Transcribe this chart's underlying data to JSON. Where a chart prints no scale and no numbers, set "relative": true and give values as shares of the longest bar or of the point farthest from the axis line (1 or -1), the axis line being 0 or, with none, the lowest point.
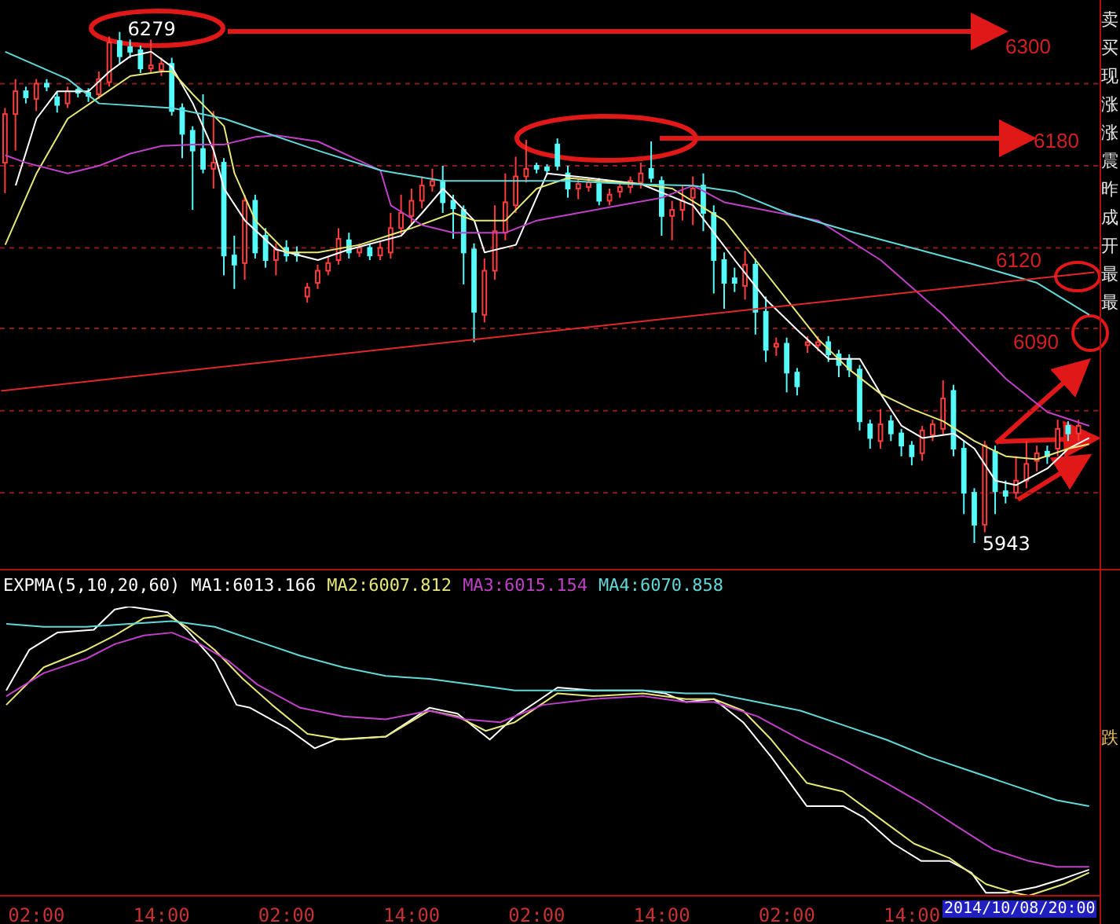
{
  "chart_data": [
    {
      "type": "candlestick",
      "x": [
        "2014-10-04T23:00",
        "2014-10-05T00:00",
        "2014-10-05T01:00",
        "2014-10-05T02:00",
        "2014-10-05T03:00",
        "2014-10-05T04:00",
        "2014-10-05T05:00",
        "2014-10-05T06:00",
        "2014-10-05T07:00",
        "2014-10-05T08:00",
        "2014-10-05T09:00",
        "2014-10-05T10:00",
        "2014-10-05T11:00",
        "2014-10-05T12:00",
        "2014-10-05T13:00",
        "2014-10-05T14:00",
        "2014-10-05T15:00",
        "2014-10-05T16:00",
        "2014-10-05T17:00",
        "2014-10-05T18:00",
        "2014-10-05T19:00",
        "2014-10-05T20:00",
        "2014-10-05T21:00",
        "2014-10-05T22:00",
        "2014-10-05T23:00",
        "2014-10-06T00:00",
        "2014-10-06T01:00",
        "2014-10-06T02:00",
        "2014-10-06T03:00",
        "2014-10-06T04:00",
        "2014-10-06T05:00",
        "2014-10-06T06:00",
        "2014-10-06T07:00",
        "2014-10-06T08:00",
        "2014-10-06T09:00",
        "2014-10-06T10:00",
        "2014-10-06T11:00",
        "2014-10-06T12:00",
        "2014-10-06T13:00",
        "2014-10-06T14:00",
        "2014-10-06T15:00",
        "2014-10-06T16:00",
        "2014-10-06T17:00",
        "2014-10-06T18:00",
        "2014-10-06T19:00",
        "2014-10-06T20:00",
        "2014-10-06T21:00",
        "2014-10-06T22:00",
        "2014-10-06T23:00",
        "2014-10-07T00:00",
        "2014-10-07T01:00",
        "2014-10-07T02:00",
        "2014-10-07T03:00",
        "2014-10-07T04:00",
        "2014-10-07T05:00",
        "2014-10-07T06:00",
        "2014-10-07T07:00",
        "2014-10-07T08:00",
        "2014-10-07T09:00",
        "2014-10-07T10:00",
        "2014-10-07T11:00",
        "2014-10-07T12:00",
        "2014-10-07T13:00",
        "2014-10-07T14:00",
        "2014-10-07T15:00",
        "2014-10-07T16:00",
        "2014-10-07T17:00",
        "2014-10-07T18:00",
        "2014-10-07T19:00",
        "2014-10-07T20:00",
        "2014-10-07T21:00",
        "2014-10-07T22:00",
        "2014-10-07T23:00",
        "2014-10-08T00:00",
        "2014-10-08T01:00",
        "2014-10-08T02:00",
        "2014-10-08T03:00",
        "2014-10-08T04:00",
        "2014-10-08T05:00",
        "2014-10-08T06:00",
        "2014-10-08T07:00",
        "2014-10-08T08:00",
        "2014-10-08T09:00",
        "2014-10-08T10:00",
        "2014-10-08T11:00",
        "2014-10-08T12:00",
        "2014-10-08T13:00",
        "2014-10-08T14:00",
        "2014-10-08T15:00",
        "2014-10-08T16:00",
        "2014-10-08T17:00",
        "2014-10-08T18:00",
        "2014-10-08T19:00",
        "2014-10-08T20:00",
        "2014-10-08T21:00",
        "2014-10-08T22:00",
        "2014-10-08T23:00",
        "2014-10-09T00:00",
        "2014-10-09T01:00",
        "2014-10-09T02:00",
        "2014-10-09T03:00",
        "2014-10-09T04:00",
        "2014-10-09T05:00",
        "2014-10-09T06:00"
      ],
      "ohlc": [
        [
          6193,
          6229,
          6173,
          6225
        ],
        [
          6225,
          6248,
          6201,
          6240
        ],
        [
          6240,
          6243,
          6232,
          6236
        ],
        [
          6235,
          6248,
          6227,
          6245
        ],
        [
          6245,
          6248,
          6240,
          6243
        ],
        [
          6236,
          6240,
          6226,
          6231
        ],
        [
          6232,
          6243,
          6229,
          6240
        ],
        [
          6241,
          6243,
          6236,
          6239
        ],
        [
          6239,
          6242,
          6233,
          6237
        ],
        [
          6238,
          6253,
          6235,
          6248
        ],
        [
          6246,
          6276,
          6243,
          6272
        ],
        [
          6273,
          6279,
          6258,
          6263
        ],
        [
          6269,
          6274,
          6262,
          6266
        ],
        [
          6267,
          6270,
          6252,
          6255
        ],
        [
          6255,
          6274,
          6252,
          6257
        ],
        [
          6254,
          6262,
          6250,
          6258
        ],
        [
          6258,
          6262,
          6224,
          6227
        ],
        [
          6229,
          6232,
          6196,
          6212
        ],
        [
          6214,
          6217,
          6162,
          6201
        ],
        [
          6202,
          6238,
          6186,
          6189
        ],
        [
          6189,
          6227,
          6176,
          6193
        ],
        [
          6193,
          6196,
          6119,
          6132
        ],
        [
          6132,
          6145,
          6110,
          6126
        ],
        [
          6127,
          6172,
          6116,
          6168
        ],
        [
          6168,
          6172,
          6130,
          6134
        ],
        [
          6145,
          6150,
          6124,
          6129
        ],
        [
          6129,
          6140,
          6119,
          6136
        ],
        [
          6137,
          6142,
          6128,
          6132
        ],
        [
          6134,
          6138,
          6128,
          6132
        ],
        [
          6105,
          6114,
          6101,
          6111
        ],
        [
          6114,
          6126,
          6110,
          6122
        ],
        [
          6122,
          6131,
          6119,
          6127
        ],
        [
          6129,
          6150,
          6126,
          6143
        ],
        [
          6142,
          6147,
          6130,
          6134
        ],
        [
          6134,
          6140,
          6131,
          6137
        ],
        [
          6137,
          6140,
          6129,
          6132
        ],
        [
          6132,
          6141,
          6129,
          6137
        ],
        [
          6134,
          6160,
          6130,
          6150
        ],
        [
          6150,
          6172,
          6146,
          6160
        ],
        [
          6158,
          6176,
          6152,
          6168
        ],
        [
          6168,
          6184,
          6163,
          6178
        ],
        [
          6178,
          6189,
          6174,
          6181
        ],
        [
          6181,
          6191,
          6160,
          6167
        ],
        [
          6168,
          6172,
          6143,
          6163
        ],
        [
          6162,
          6165,
          6113,
          6134
        ],
        [
          6136,
          6140,
          6075,
          6095
        ],
        [
          6093,
          6130,
          6088,
          6122
        ],
        [
          6122,
          6165,
          6116,
          6148
        ],
        [
          6147,
          6186,
          6142,
          6167
        ],
        [
          6165,
          6197,
          6160,
          6184
        ],
        [
          6184,
          6208,
          6180,
          6189
        ],
        [
          6191,
          6193,
          6186,
          6189
        ],
        [
          6190,
          6192,
          6185,
          6188
        ],
        [
          6205,
          6209,
          6188,
          6191
        ],
        [
          6186,
          6191,
          6170,
          6176
        ],
        [
          6176,
          6182,
          6169,
          6179
        ],
        [
          6177,
          6183,
          6174,
          6180
        ],
        [
          6179,
          6183,
          6165,
          6168
        ],
        [
          6168,
          6176,
          6165,
          6172
        ],
        [
          6174,
          6181,
          6170,
          6177
        ],
        [
          6177,
          6184,
          6173,
          6181
        ],
        [
          6180,
          6193,
          6176,
          6186
        ],
        [
          6189,
          6207,
          6180,
          6183
        ],
        [
          6181,
          6184,
          6145,
          6158
        ],
        [
          6158,
          6168,
          6142,
          6162
        ],
        [
          6162,
          6178,
          6155,
          6168
        ],
        [
          6170,
          6184,
          6152,
          6176
        ],
        [
          6178,
          6186,
          6148,
          6160
        ],
        [
          6160,
          6165,
          6107,
          6129
        ],
        [
          6129,
          6134,
          6097,
          6114
        ],
        [
          6117,
          6124,
          6108,
          6114
        ],
        [
          6112,
          6135,
          6103,
          6126
        ],
        [
          6126,
          6130,
          6080,
          6095
        ],
        [
          6095,
          6105,
          6062,
          6070
        ],
        [
          6072,
          6078,
          6066,
          6074
        ],
        [
          6074,
          6078,
          6042,
          6055
        ],
        [
          6055,
          6058,
          6040,
          6046
        ],
        [
          6073,
          6079,
          6068,
          6075
        ],
        [
          6073,
          6079,
          6069,
          6075
        ],
        [
          6075,
          6079,
          6062,
          6067
        ],
        [
          6067,
          6070,
          6052,
          6060
        ],
        [
          6064,
          6067,
          6052,
          6057
        ],
        [
          6057,
          6060,
          6017,
          6023
        ],
        [
          6021,
          6024,
          6005,
          6012
        ],
        [
          6010,
          6031,
          6005,
          6021
        ],
        [
          6023,
          6027,
          6010,
          6015
        ],
        [
          6015,
          6018,
          6000,
          6007
        ],
        [
          6007,
          6010,
          5994,
          6000
        ],
        [
          6002,
          6020,
          5997,
          6017
        ],
        [
          6014,
          6024,
          6010,
          6021
        ],
        [
          6018,
          6050,
          6014,
          6038
        ],
        [
          6043,
          6047,
          6000,
          6005
        ],
        [
          6005,
          6010,
          5962,
          5976
        ],
        [
          5976,
          5979,
          5943,
          5955
        ],
        [
          5955,
          6010,
          5950,
          6007
        ],
        [
          6003,
          6007,
          5962,
          5977
        ],
        [
          5977,
          5984,
          5969,
          5974
        ],
        [
          5976,
          6000,
          5972,
          5984
        ],
        [
          5984,
          6010,
          5979,
          5995
        ],
        [
          5997,
          6007,
          5990,
          6002
        ],
        [
          6003,
          6007,
          5995,
          6000
        ],
        [
          6005,
          6024,
          6000,
          6018
        ],
        [
          6020,
          6023,
          6010,
          6015
        ],
        [
          6015,
          6024,
          6010,
          6020
        ]
      ],
      "colors": [
        "#ff3c3c",
        "#ff3c3c",
        "#54fcfc",
        "#ff3c3c",
        "#54fcfc",
        "#54fcfc",
        "#ff3c3c",
        "#54fcfc",
        "#54fcfc",
        "#ff3c3c",
        "#ff3c3c",
        "#54fcfc",
        "#54fcfc",
        "#54fcfc",
        "#ff3c3c",
        "#ff3c3c",
        "#54fcfc",
        "#54fcfc",
        "#54fcfc",
        "#54fcfc",
        "#ff3c3c",
        "#54fcfc",
        "#54fcfc",
        "#ff3c3c",
        "#54fcfc",
        "#54fcfc",
        "#ff3c3c",
        "#54fcfc",
        "#54fcfc",
        "#ff3c3c",
        "#ff3c3c",
        "#ff3c3c",
        "#ff3c3c",
        "#54fcfc",
        "#ff3c3c",
        "#54fcfc",
        "#ff3c3c",
        "#ff3c3c",
        "#ff3c3c",
        "#ff3c3c",
        "#ff3c3c",
        "#ff3c3c",
        "#54fcfc",
        "#54fcfc",
        "#54fcfc",
        "#54fcfc",
        "#ff3c3c",
        "#ff3c3c",
        "#ff3c3c",
        "#ff3c3c",
        "#ff3c3c",
        "#54fcfc",
        "#54fcfc",
        "#54fcfc",
        "#54fcfc",
        "#ff3c3c",
        "#ff3c3c",
        "#54fcfc",
        "#ff3c3c",
        "#ff3c3c",
        "#ff3c3c",
        "#ff3c3c",
        "#54fcfc",
        "#54fcfc",
        "#ff3c3c",
        "#ff3c3c",
        "#ff3c3c",
        "#54fcfc",
        "#54fcfc",
        "#54fcfc",
        "#54fcfc",
        "#ff3c3c",
        "#54fcfc",
        "#54fcfc",
        "#ff3c3c",
        "#54fcfc",
        "#54fcfc",
        "#ff3c3c",
        "#ff3c3c",
        "#54fcfc",
        "#54fcfc",
        "#54fcfc",
        "#54fcfc",
        "#54fcfc",
        "#ff3c3c",
        "#54fcfc",
        "#54fcfc",
        "#54fcfc",
        "#ff3c3c",
        "#ff3c3c",
        "#ff3c3c",
        "#54fcfc",
        "#54fcfc",
        "#54fcfc",
        "#ff3c3c",
        "#54fcfc",
        "#54fcfc",
        "#ff3c3c",
        "#ff3c3c",
        "#ff3c3c",
        "#54fcfc",
        "#ff3c3c",
        "#54fcfc",
        "#ff3c3c"
      ],
      "series": [
        {
          "type": "line",
          "color": "#ffffff",
          "x": [
            "2014-10-05T00:00",
            "2014-10-05T02:00",
            "2014-10-05T04:00",
            "2014-10-05T07:00",
            "2014-10-05T09:00",
            "2014-10-05T11:00",
            "2014-10-05T13:00",
            "2014-10-05T15:00",
            "2014-10-05T17:00",
            "2014-10-05T19:00",
            "2014-10-05T20:00",
            "2014-10-05T22:00",
            "2014-10-06T01:00",
            "2014-10-06T05:00",
            "2014-10-06T08:00",
            "2014-10-06T13:00",
            "2014-10-06T15:00",
            "2014-10-06T17:00",
            "2014-10-06T20:00",
            "2014-10-06T21:00",
            "2014-10-07T00:00",
            "2014-10-07T03:00",
            "2014-10-07T07:00",
            "2014-10-07T12:00",
            "2014-10-07T17:00",
            "2014-10-07T21:00",
            "2014-10-08T00:00",
            "2014-10-08T03:00",
            "2014-10-08T06:00",
            "2014-10-08T09:00",
            "2014-10-08T11:00",
            "2014-10-08T13:00",
            "2014-10-08T15:00",
            "2014-10-08T18:00",
            "2014-10-08T20:00",
            "2014-10-08T22:00",
            "2014-10-09T00:00",
            "2014-10-09T03:00",
            "2014-10-09T05:00",
            "2014-10-09T07:00"
          ],
          "values": [
            6178,
            6222,
            6240,
            6240,
            6253,
            6263,
            6266,
            6256,
            6232,
            6201,
            6176,
            6155,
            6136,
            6129,
            6136,
            6145,
            6160,
            6176,
            6155,
            6134,
            6139,
            6186,
            6183,
            6179,
            6165,
            6129,
            6103,
            6083,
            6064,
            6064,
            6041,
            6020,
            6012,
            6015,
            6005,
            5984,
            5981,
            5992,
            6005,
            6012
          ]
        },
        {
          "type": "line",
          "color": "#e8e878",
          "x": [
            "2014-10-04T23:00",
            "2014-10-05T02:00",
            "2014-10-05T05:00",
            "2014-10-05T08:00",
            "2014-10-05T11:00",
            "2014-10-05T14:00",
            "2014-10-05T15:00",
            "2014-10-05T17:00",
            "2014-10-05T20:00",
            "2014-10-05T21:00",
            "2014-10-05T23:00",
            "2014-10-06T02:00",
            "2014-10-06T05:00",
            "2014-10-06T09:00",
            "2014-10-06T14:00",
            "2014-10-06T18:00",
            "2014-10-06T20:00",
            "2014-10-06T23:00",
            "2014-10-07T02:00",
            "2014-10-07T05:00",
            "2014-10-07T08:00",
            "2014-10-07T12:00",
            "2014-10-07T15:00",
            "2014-10-07T20:00",
            "2014-10-07T23:00",
            "2014-10-08T02:00",
            "2014-10-08T05:00",
            "2014-10-08T08:00",
            "2014-10-08T11:00",
            "2014-10-08T14:00",
            "2014-10-08T17:00",
            "2014-10-08T20:00",
            "2014-10-08T23:00",
            "2014-10-09T02:00",
            "2014-10-09T05:00",
            "2014-10-09T07:00"
          ],
          "values": [
            6139,
            6186,
            6222,
            6236,
            6250,
            6253,
            6253,
            6238,
            6217,
            6186,
            6155,
            6134,
            6134,
            6139,
            6150,
            6160,
            6155,
            6155,
            6176,
            6183,
            6181,
            6179,
            6176,
            6155,
            6129,
            6103,
            6077,
            6057,
            6041,
            6031,
            6023,
            6010,
            6000,
            5998,
            6005,
            6008
          ]
        },
        {
          "type": "line",
          "color": "#c040c8",
          "x": [
            "2014-10-04T23:00",
            "2014-10-05T01:00",
            "2014-10-05T05:00",
            "2014-10-05T08:00",
            "2014-10-05T11:00",
            "2014-10-05T14:00",
            "2014-10-05T17:00",
            "2014-10-05T20:00",
            "2014-10-05T23:00",
            "2014-10-06T01:00",
            "2014-10-06T05:00",
            "2014-10-06T11:00",
            "2014-10-06T12:00",
            "2014-10-06T15:00",
            "2014-10-06T18:00",
            "2014-10-06T23:00",
            "2014-10-07T02:00",
            "2014-10-07T06:00",
            "2014-10-07T10:00",
            "2014-10-07T14:00",
            "2014-10-07T17:00",
            "2014-10-07T20:00",
            "2014-10-08T05:00",
            "2014-10-08T11:00",
            "2014-10-08T17:00",
            "2014-10-08T23:00",
            "2014-10-09T03:00",
            "2014-10-09T07:00"
          ],
          "values": [
            6198,
            6193,
            6186,
            6191,
            6199,
            6204,
            6205,
            6205,
            6210,
            6211,
            6207,
            6188,
            6165,
            6152,
            6147,
            6147,
            6155,
            6160,
            6165,
            6170,
            6178,
            6167,
            6155,
            6129,
            6093,
            6051,
            6029,
            6020
          ]
        },
        {
          "type": "line",
          "color": "#60d8d8",
          "x": [
            "2014-10-04T23:00",
            "2014-10-05T05:00",
            "2014-10-05T08:00",
            "2014-10-05T15:00",
            "2014-10-05T20:00",
            "2014-10-05T23:00",
            "2014-10-06T05:00",
            "2014-10-06T11:00",
            "2014-10-06T17:00",
            "2014-10-06T23:00",
            "2014-10-07T05:00",
            "2014-10-07T11:00",
            "2014-10-07T17:00",
            "2014-10-07T21:00",
            "2014-10-08T02:00",
            "2014-10-08T08:00",
            "2014-10-08T14:00",
            "2014-10-08T20:00",
            "2014-10-09T02:00",
            "2014-10-09T07:00"
          ],
          "values": [
            6266,
            6248,
            6232,
            6229,
            6222,
            6215,
            6201,
            6188,
            6181,
            6181,
            6181,
            6179,
            6178,
            6174,
            6160,
            6148,
            6137,
            6126,
            6114,
            6093
          ]
        },
        {
          "type": "line",
          "color": "#e02828",
          "x": [
            "2014-10-04T22:36",
            "2014-10-09T07:30"
          ],
          "values": [
            6043,
            6121
          ]
        }
      ],
      "xlim": [
        "2014-10-04T22:30",
        "2014-10-09T08:00"
      ],
      "ylim": [
        5927,
        6300
      ],
      "yticks": [
        {
          "value": 6245,
          "label": null
        },
        {
          "value": 6191,
          "label": null
        },
        {
          "value": 6137,
          "label": null
        },
        {
          "value": 6084,
          "label": null
        },
        {
          "value": 6030,
          "label": null
        },
        {
          "value": 5976,
          "label": null
        }
      ],
      "grid": "y",
      "tick_labels": false,
      "marker": "none",
      "line_style": "solid",
      "annotations": [
        {
          "text": "6279",
          "x": "2014-10-05T10:00",
          "y": 6279
        },
        {
          "text": "5943",
          "x": "2014-10-08T20:00",
          "y": 5943
        },
        "6300",
        "6180",
        "6120",
        "6090",
        "卖",
        "买",
        "现",
        "涨",
        "涨",
        "震",
        "昨",
        "成",
        "开",
        "最",
        "最"
      ]
    },
    {
      "type": "line",
      "relative": true,
      "title": "EXPMA(5,10,20,60)",
      "legend": "top left",
      "marker": "none",
      "line_style": "solid",
      "tick_labels": "x",
      "xlim": [
        "2014-10-04T22:30",
        "2014-10-09T08:00"
      ],
      "xticks": [
        {
          "value": "2014-10-05T02:00",
          "label": "02:00"
        },
        {
          "value": "2014-10-05T14:00",
          "label": "14:00"
        },
        {
          "value": "2014-10-06T02:00",
          "label": "02:00"
        },
        {
          "value": "2014-10-06T14:00",
          "label": "14:00"
        },
        {
          "value": "2014-10-07T02:00",
          "label": "02:00"
        },
        {
          "value": "2014-10-07T14:00",
          "label": "14:00"
        },
        {
          "value": "2014-10-08T02:00",
          "label": "02:00"
        },
        {
          "value": "2014-10-08T14:00",
          "label": "14:00"
        }
      ],
      "series": [
        {
          "name": "MA1:6013.166",
          "color": "#ffffff",
          "x": [
            "2014-10-04T23:06",
            "2014-10-05T01:18",
            "2014-10-05T04:00",
            "2014-10-05T07:30",
            "2014-10-05T09:30",
            "2014-10-05T10:54",
            "2014-10-05T14:36",
            "2014-10-05T16:24",
            "2014-10-05T19:06",
            "2014-10-05T21:12",
            "2014-10-05T22:30",
            "2014-10-06T02:00",
            "2014-10-06T04:42",
            "2014-10-06T06:42",
            "2014-10-06T11:30",
            "2014-10-06T15:42",
            "2014-10-06T18:24",
            "2014-10-06T20:06",
            "2014-10-06T21:30",
            "2014-10-06T23:54",
            "2014-10-07T04:00",
            "2014-10-07T07:24",
            "2014-10-07T12:12",
            "2014-10-07T14:18",
            "2014-10-07T16:18",
            "2014-10-07T19:00",
            "2014-10-07T21:48",
            "2014-10-08T00:30",
            "2014-10-08T03:54",
            "2014-10-08T07:24",
            "2014-10-08T09:24",
            "2014-10-08T12:12",
            "2014-10-08T14:54",
            "2014-10-08T17:36",
            "2014-10-08T19:42",
            "2014-10-08T21:06",
            "2014-10-08T23:06",
            "2014-10-09T01:54",
            "2014-10-09T04:36",
            "2014-10-09T07:00"
          ],
          "values": [
            0.71,
            0.85,
            0.91,
            0.92,
            0.99,
            1.0,
            0.98,
            0.92,
            0.81,
            0.66,
            0.65,
            0.58,
            0.51,
            0.54,
            0.55,
            0.65,
            0.63,
            0.58,
            0.54,
            0.62,
            0.72,
            0.71,
            0.71,
            0.7,
            0.67,
            0.68,
            0.6,
            0.48,
            0.31,
            0.31,
            0.27,
            0.18,
            0.12,
            0.12,
            0.08,
            0.01,
            0.01,
            0.03,
            0.06,
            0.09
          ]
        },
        {
          "name": "MA2:6007.812",
          "color": "#e8e878",
          "x": [
            "2014-10-04T23:06",
            "2014-10-05T02:42",
            "2014-10-05T06:48",
            "2014-10-05T09:30",
            "2014-10-05T12:18",
            "2014-10-05T14:36",
            "2014-10-05T16:24",
            "2014-10-05T19:06",
            "2014-10-05T21:48",
            "2014-10-06T00:36",
            "2014-10-06T04:00",
            "2014-10-06T07:24",
            "2014-10-06T11:30",
            "2014-10-06T15:42",
            "2014-10-06T18:24",
            "2014-10-06T21:06",
            "2014-10-06T23:54",
            "2014-10-07T04:00",
            "2014-10-07T07:24",
            "2014-10-07T12:12",
            "2014-10-07T16:18",
            "2014-10-07T19:00",
            "2014-10-07T21:48",
            "2014-10-08T00:30",
            "2014-10-08T03:54",
            "2014-10-08T07:24",
            "2014-10-08T10:48",
            "2014-10-08T14:12",
            "2014-10-08T17:36",
            "2014-10-08T21:06",
            "2014-10-08T23:48",
            "2014-10-09T01:12",
            "2014-10-09T04:36",
            "2014-10-09T07:00"
          ],
          "values": [
            0.66,
            0.79,
            0.85,
            0.9,
            0.96,
            0.97,
            0.93,
            0.85,
            0.75,
            0.66,
            0.56,
            0.54,
            0.55,
            0.64,
            0.62,
            0.57,
            0.6,
            0.7,
            0.69,
            0.7,
            0.68,
            0.68,
            0.64,
            0.54,
            0.39,
            0.36,
            0.27,
            0.18,
            0.13,
            0.04,
            0.01,
            0,
            0.04,
            0.08
          ]
        },
        {
          "name": "MA3:6015.154",
          "color": "#c040c8",
          "x": [
            "2014-10-04T23:06",
            "2014-10-05T02:42",
            "2014-10-05T06:48",
            "2014-10-05T09:30",
            "2014-10-05T12:18",
            "2014-10-05T15:00",
            "2014-10-05T17:42",
            "2014-10-05T20:30",
            "2014-10-05T23:12",
            "2014-10-06T03:18",
            "2014-10-06T07:24",
            "2014-10-06T11:30",
            "2014-10-06T15:42",
            "2014-10-06T19:06",
            "2014-10-06T22:30",
            "2014-10-07T02:36",
            "2014-10-07T07:24",
            "2014-10-07T12:12",
            "2014-10-07T16:18",
            "2014-10-07T19:00",
            "2014-10-07T23:12",
            "2014-10-08T03:18",
            "2014-10-08T07:24",
            "2014-10-08T11:30",
            "2014-10-08T14:54",
            "2014-10-08T18:18",
            "2014-10-08T21:48",
            "2014-10-09T01:12",
            "2014-10-09T03:54",
            "2014-10-09T07:00"
          ],
          "values": [
            0.69,
            0.77,
            0.82,
            0.87,
            0.9,
            0.91,
            0.87,
            0.81,
            0.73,
            0.65,
            0.62,
            0.61,
            0.64,
            0.61,
            0.6,
            0.66,
            0.68,
            0.69,
            0.67,
            0.67,
            0.62,
            0.54,
            0.47,
            0.39,
            0.32,
            0.24,
            0.16,
            0.12,
            0.1,
            0.1
          ]
        },
        {
          "name": "MA4:6070.858",
          "color": "#60d8d8",
          "x": [
            "2014-10-04T23:06",
            "2014-10-05T02:42",
            "2014-10-05T06:48",
            "2014-10-05T10:54",
            "2014-10-05T15:00",
            "2014-10-05T19:06",
            "2014-10-05T23:12",
            "2014-10-06T03:18",
            "2014-10-06T07:24",
            "2014-10-06T11:30",
            "2014-10-06T15:42",
            "2014-10-06T19:48",
            "2014-10-06T23:54",
            "2014-10-07T04:00",
            "2014-10-07T08:06",
            "2014-10-07T12:12",
            "2014-10-07T16:18",
            "2014-10-07T19:00",
            "2014-10-07T23:12",
            "2014-10-08T03:18",
            "2014-10-08T07:24",
            "2014-10-08T11:30",
            "2014-10-08T15:36",
            "2014-10-08T19:42",
            "2014-10-08T23:48",
            "2014-10-09T03:54",
            "2014-10-09T07:00"
          ],
          "values": [
            0.94,
            0.93,
            0.93,
            0.94,
            0.95,
            0.93,
            0.88,
            0.83,
            0.79,
            0.76,
            0.75,
            0.73,
            0.71,
            0.71,
            0.71,
            0.71,
            0.7,
            0.7,
            0.67,
            0.64,
            0.59,
            0.54,
            0.48,
            0.43,
            0.38,
            0.33,
            0.31
          ]
        }
      ],
      "annotations": [
        "2014/10/08/20:00",
        "跌"
      ]
    }
  ]
}
